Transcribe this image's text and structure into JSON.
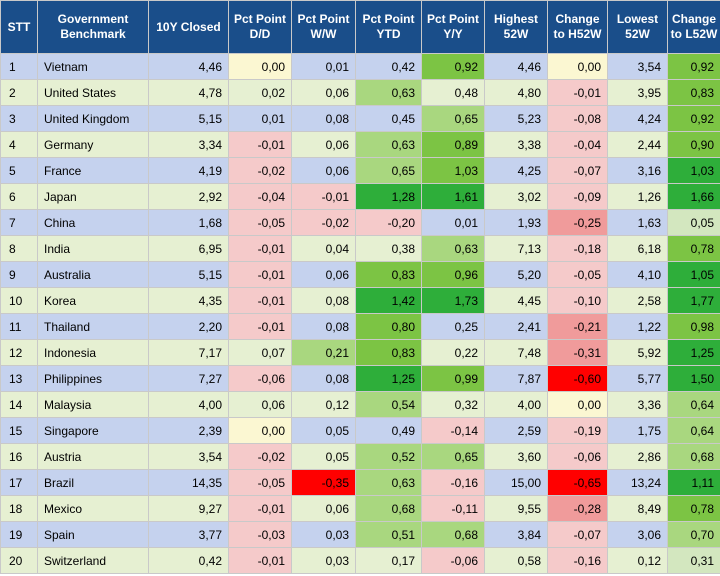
{
  "headers": [
    "STT",
    "Government Benchmark",
    "10Y Closed",
    "Pct Point D/D",
    "Pct Point W/W",
    "Pct Point YTD",
    "Pct Point Y/Y",
    "Highest 52W",
    "Change to H52W",
    "Lowest 52W",
    "Change to L52W"
  ],
  "rows": [
    {
      "stt": "1",
      "country": "Vietnam",
      "closed": "4,46",
      "dd": "0,00",
      "ww": "0,01",
      "ytd": "0,42",
      "yy": "0,92",
      "h52": "4,46",
      "ch52": "0,00",
      "l52": "3,54",
      "cl52": "0,92"
    },
    {
      "stt": "2",
      "country": "United States",
      "closed": "4,78",
      "dd": "0,02",
      "ww": "0,06",
      "ytd": "0,63",
      "yy": "0,48",
      "h52": "4,80",
      "ch52": "-0,01",
      "l52": "3,95",
      "cl52": "0,83"
    },
    {
      "stt": "3",
      "country": "United Kingdom",
      "closed": "5,15",
      "dd": "0,01",
      "ww": "0,08",
      "ytd": "0,45",
      "yy": "0,65",
      "h52": "5,23",
      "ch52": "-0,08",
      "l52": "4,24",
      "cl52": "0,92"
    },
    {
      "stt": "4",
      "country": "Germany",
      "closed": "3,34",
      "dd": "-0,01",
      "ww": "0,06",
      "ytd": "0,63",
      "yy": "0,89",
      "h52": "3,38",
      "ch52": "-0,04",
      "l52": "2,44",
      "cl52": "0,90"
    },
    {
      "stt": "5",
      "country": "France",
      "closed": "4,19",
      "dd": "-0,02",
      "ww": "0,06",
      "ytd": "0,65",
      "yy": "1,03",
      "h52": "4,25",
      "ch52": "-0,07",
      "l52": "3,16",
      "cl52": "1,03"
    },
    {
      "stt": "6",
      "country": "Japan",
      "closed": "2,92",
      "dd": "-0,04",
      "ww": "-0,01",
      "ytd": "1,28",
      "yy": "1,61",
      "h52": "3,02",
      "ch52": "-0,09",
      "l52": "1,26",
      "cl52": "1,66"
    },
    {
      "stt": "7",
      "country": "China",
      "closed": "1,68",
      "dd": "-0,05",
      "ww": "-0,02",
      "ytd": "-0,20",
      "yy": "0,01",
      "h52": "1,93",
      "ch52": "-0,25",
      "l52": "1,63",
      "cl52": "0,05"
    },
    {
      "stt": "8",
      "country": "India",
      "closed": "6,95",
      "dd": "-0,01",
      "ww": "0,04",
      "ytd": "0,38",
      "yy": "0,63",
      "h52": "7,13",
      "ch52": "-0,18",
      "l52": "6,18",
      "cl52": "0,78"
    },
    {
      "stt": "9",
      "country": "Australia",
      "closed": "5,15",
      "dd": "-0,01",
      "ww": "0,06",
      "ytd": "0,83",
      "yy": "0,96",
      "h52": "5,20",
      "ch52": "-0,05",
      "l52": "4,10",
      "cl52": "1,05"
    },
    {
      "stt": "10",
      "country": "Korea",
      "closed": "4,35",
      "dd": "-0,01",
      "ww": "0,08",
      "ytd": "1,42",
      "yy": "1,73",
      "h52": "4,45",
      "ch52": "-0,10",
      "l52": "2,58",
      "cl52": "1,77"
    },
    {
      "stt": "11",
      "country": "Thailand",
      "closed": "2,20",
      "dd": "-0,01",
      "ww": "0,08",
      "ytd": "0,80",
      "yy": "0,25",
      "h52": "2,41",
      "ch52": "-0,21",
      "l52": "1,22",
      "cl52": "0,98"
    },
    {
      "stt": "12",
      "country": "Indonesia",
      "closed": "7,17",
      "dd": "0,07",
      "ww": "0,21",
      "ytd": "0,83",
      "yy": "0,22",
      "h52": "7,48",
      "ch52": "-0,31",
      "l52": "5,92",
      "cl52": "1,25"
    },
    {
      "stt": "13",
      "country": "Philippines",
      "closed": "7,27",
      "dd": "-0,06",
      "ww": "0,08",
      "ytd": "1,25",
      "yy": "0,99",
      "h52": "7,87",
      "ch52": "-0,60",
      "l52": "5,77",
      "cl52": "1,50"
    },
    {
      "stt": "14",
      "country": "Malaysia",
      "closed": "4,00",
      "dd": "0,06",
      "ww": "0,12",
      "ytd": "0,54",
      "yy": "0,32",
      "h52": "4,00",
      "ch52": "0,00",
      "l52": "3,36",
      "cl52": "0,64"
    },
    {
      "stt": "15",
      "country": "Singapore",
      "closed": "2,39",
      "dd": "0,00",
      "ww": "0,05",
      "ytd": "0,49",
      "yy": "-0,14",
      "h52": "2,59",
      "ch52": "-0,19",
      "l52": "1,75",
      "cl52": "0,64"
    },
    {
      "stt": "16",
      "country": "Austria",
      "closed": "3,54",
      "dd": "-0,02",
      "ww": "0,05",
      "ytd": "0,52",
      "yy": "0,65",
      "h52": "3,60",
      "ch52": "-0,06",
      "l52": "2,86",
      "cl52": "0,68"
    },
    {
      "stt": "17",
      "country": "Brazil",
      "closed": "14,35",
      "dd": "-0,05",
      "ww": "-0,35",
      "ytd": "0,63",
      "yy": "-0,16",
      "h52": "15,00",
      "ch52": "-0,65",
      "l52": "13,24",
      "cl52": "1,11"
    },
    {
      "stt": "18",
      "country": "Mexico",
      "closed": "9,27",
      "dd": "-0,01",
      "ww": "0,06",
      "ytd": "0,68",
      "yy": "-0,11",
      "h52": "9,55",
      "ch52": "-0,28",
      "l52": "8,49",
      "cl52": "0,78"
    },
    {
      "stt": "19",
      "country": "Spain",
      "closed": "3,77",
      "dd": "-0,03",
      "ww": "0,03",
      "ytd": "0,51",
      "yy": "0,68",
      "h52": "3,84",
      "ch52": "-0,07",
      "l52": "3,06",
      "cl52": "0,70"
    },
    {
      "stt": "20",
      "country": "Switzerland",
      "closed": "0,42",
      "dd": "-0,01",
      "ww": "0,03",
      "ytd": "0,17",
      "yy": "-0,06",
      "h52": "0,58",
      "ch52": "-0,16",
      "l52": "0,12",
      "cl52": "0,31"
    }
  ],
  "colors": {
    "header_bg": "#1a4e8a",
    "row_odd": "#c5d2ee",
    "row_even": "#e6f0d2",
    "zero": "#fbf7d2",
    "neg_light": "#f5caca",
    "neg_mid": "#f09b9b",
    "neg_strong": "#ff0000",
    "pos_light": "#d3e7bf",
    "pos_mid": "#a9d77f",
    "pos_strong": "#7cc444",
    "pos_top": "#2eae3a"
  }
}
